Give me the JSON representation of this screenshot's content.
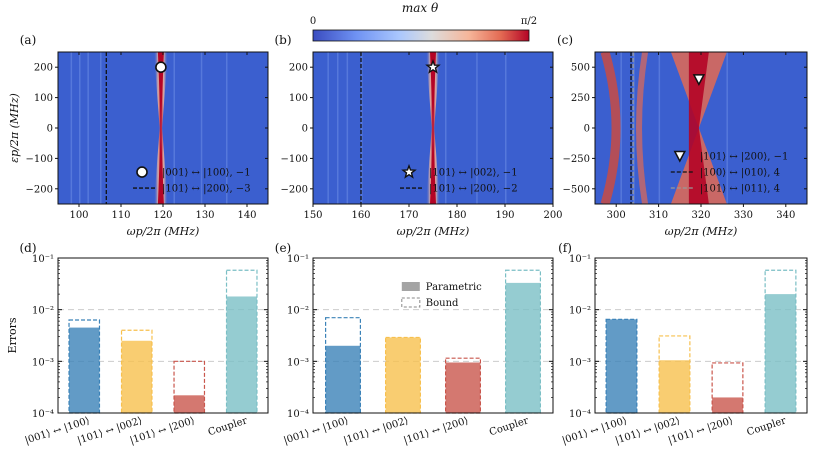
{
  "colorbar": {
    "title": "max θ",
    "min_label": "0",
    "max_label": "π/2",
    "colors": [
      "#3a4cc0",
      "#6f92f3",
      "#aac7fd",
      "#dddcdc",
      "#f6b69a",
      "#e36a53",
      "#b40426"
    ]
  },
  "chart_data": [
    {
      "type": "heatmap",
      "panel_label": "(a)",
      "xlabel": "ωp/2π (MHz)",
      "ylabel": "εp/2π (MHz)",
      "xlim": [
        95,
        145
      ],
      "ylim": [
        -250,
        250
      ],
      "xticks": [
        100,
        110,
        120,
        130,
        140
      ],
      "yticks": [
        -200,
        -100,
        0,
        100,
        200
      ],
      "resonance_center": 119.5,
      "transition_marker": {
        "shape": "circle",
        "x": 119.5,
        "y": 200,
        "legend_x": 115,
        "legend_y": -145,
        "label": "|001⟩ ↔ |100⟩, −1"
      },
      "dashed_line": {
        "x": 106.5,
        "color": "#111111",
        "label": "|101⟩ ↔ |200⟩, −3"
      }
    },
    {
      "type": "heatmap",
      "panel_label": "(b)",
      "xlabel": "ωp/2π (MHz)",
      "ylabel": "",
      "xlim": [
        150,
        200
      ],
      "ylim": [
        -250,
        250
      ],
      "xticks": [
        150,
        160,
        170,
        180,
        190,
        200
      ],
      "yticks": [
        -200,
        -100,
        0,
        100,
        200
      ],
      "resonance_center": 175,
      "transition_marker": {
        "shape": "star",
        "x": 175,
        "y": 200,
        "legend_x": 170,
        "legend_y": -145,
        "label": "|101⟩ ↔ |002⟩, −1"
      },
      "dashed_line": {
        "x": 160,
        "color": "#111111",
        "label": "|101⟩ ↔ |200⟩, −2"
      }
    },
    {
      "type": "heatmap",
      "panel_label": "(c)",
      "xlabel": "ωp/2π (MHz)",
      "ylabel": "",
      "xlim": [
        295,
        345
      ],
      "ylim": [
        -625,
        625
      ],
      "xticks": [
        300,
        310,
        320,
        330,
        340
      ],
      "yticks": [
        -500,
        -250,
        0,
        250,
        500
      ],
      "resonance_center": 319.5,
      "transition_marker": {
        "shape": "triangle",
        "x": 319.5,
        "y": 400,
        "legend_x": 315,
        "legend_y": -230,
        "label": "|101⟩ ↔ |200⟩, −1"
      },
      "dashed_line": {
        "x": 303.5,
        "color": "#111111",
        "label": "|100⟩ ↔ |010⟩, 4"
      },
      "dashed_line_2": {
        "x": 304,
        "color": "#999999",
        "label": "|101⟩ ↔ |011⟩, 4"
      }
    },
    {
      "type": "bar",
      "panel_label": "(d)",
      "ylabel": "Errors",
      "yscale": "log",
      "ylim": [
        0.0001,
        0.1
      ],
      "ytick_labels": [
        "10⁻⁴",
        "10⁻³",
        "10⁻²",
        "10⁻¹"
      ],
      "categories": [
        "|001⟩ ↔ |100⟩",
        "|101⟩ ↔ |002⟩",
        "|101⟩ ↔ |200⟩",
        "Coupler"
      ],
      "colors": [
        "#3b82b8",
        "#f7c04e",
        "#c9564c",
        "#7bbfc5"
      ],
      "series": [
        {
          "name": "Parametric",
          "values": [
            0.0045,
            0.0025,
            0.00022,
            0.018
          ]
        },
        {
          "name": "Bound",
          "values": [
            0.0063,
            0.004,
            0.001,
            0.058
          ]
        }
      ]
    },
    {
      "type": "bar",
      "panel_label": "(e)",
      "ylabel": "",
      "yscale": "log",
      "ylim": [
        0.0001,
        0.1
      ],
      "ytick_labels": [
        "10⁻⁴",
        "10⁻³",
        "10⁻²",
        "10⁻¹"
      ],
      "categories": [
        "|001⟩ ↔ |100⟩",
        "|101⟩ ↔ |002⟩",
        "|101⟩ ↔ |200⟩",
        "Coupler"
      ],
      "colors": [
        "#3b82b8",
        "#f7c04e",
        "#c9564c",
        "#7bbfc5"
      ],
      "legend": [
        "Parametric",
        "Bound"
      ],
      "series": [
        {
          "name": "Parametric",
          "values": [
            0.002,
            0.0029,
            0.00095,
            0.033
          ]
        },
        {
          "name": "Bound",
          "values": [
            0.007,
            0.0029,
            0.00115,
            0.058
          ]
        }
      ]
    },
    {
      "type": "bar",
      "panel_label": "(f)",
      "ylabel": "",
      "yscale": "log",
      "ylim": [
        0.0001,
        0.1
      ],
      "ytick_labels": [
        "10⁻⁴",
        "10⁻³",
        "10⁻²",
        "10⁻¹"
      ],
      "categories": [
        "|001⟩ ↔ |100⟩",
        "|101⟩ ↔ |002⟩",
        "|101⟩ ↔ |200⟩",
        "Coupler"
      ],
      "colors": [
        "#3b82b8",
        "#f7c04e",
        "#c9564c",
        "#7bbfc5"
      ],
      "series": [
        {
          "name": "Parametric",
          "values": [
            0.0065,
            0.00105,
            0.0002,
            0.02
          ]
        },
        {
          "name": "Bound",
          "values": [
            0.0065,
            0.0031,
            0.00093,
            0.058
          ]
        }
      ]
    }
  ]
}
